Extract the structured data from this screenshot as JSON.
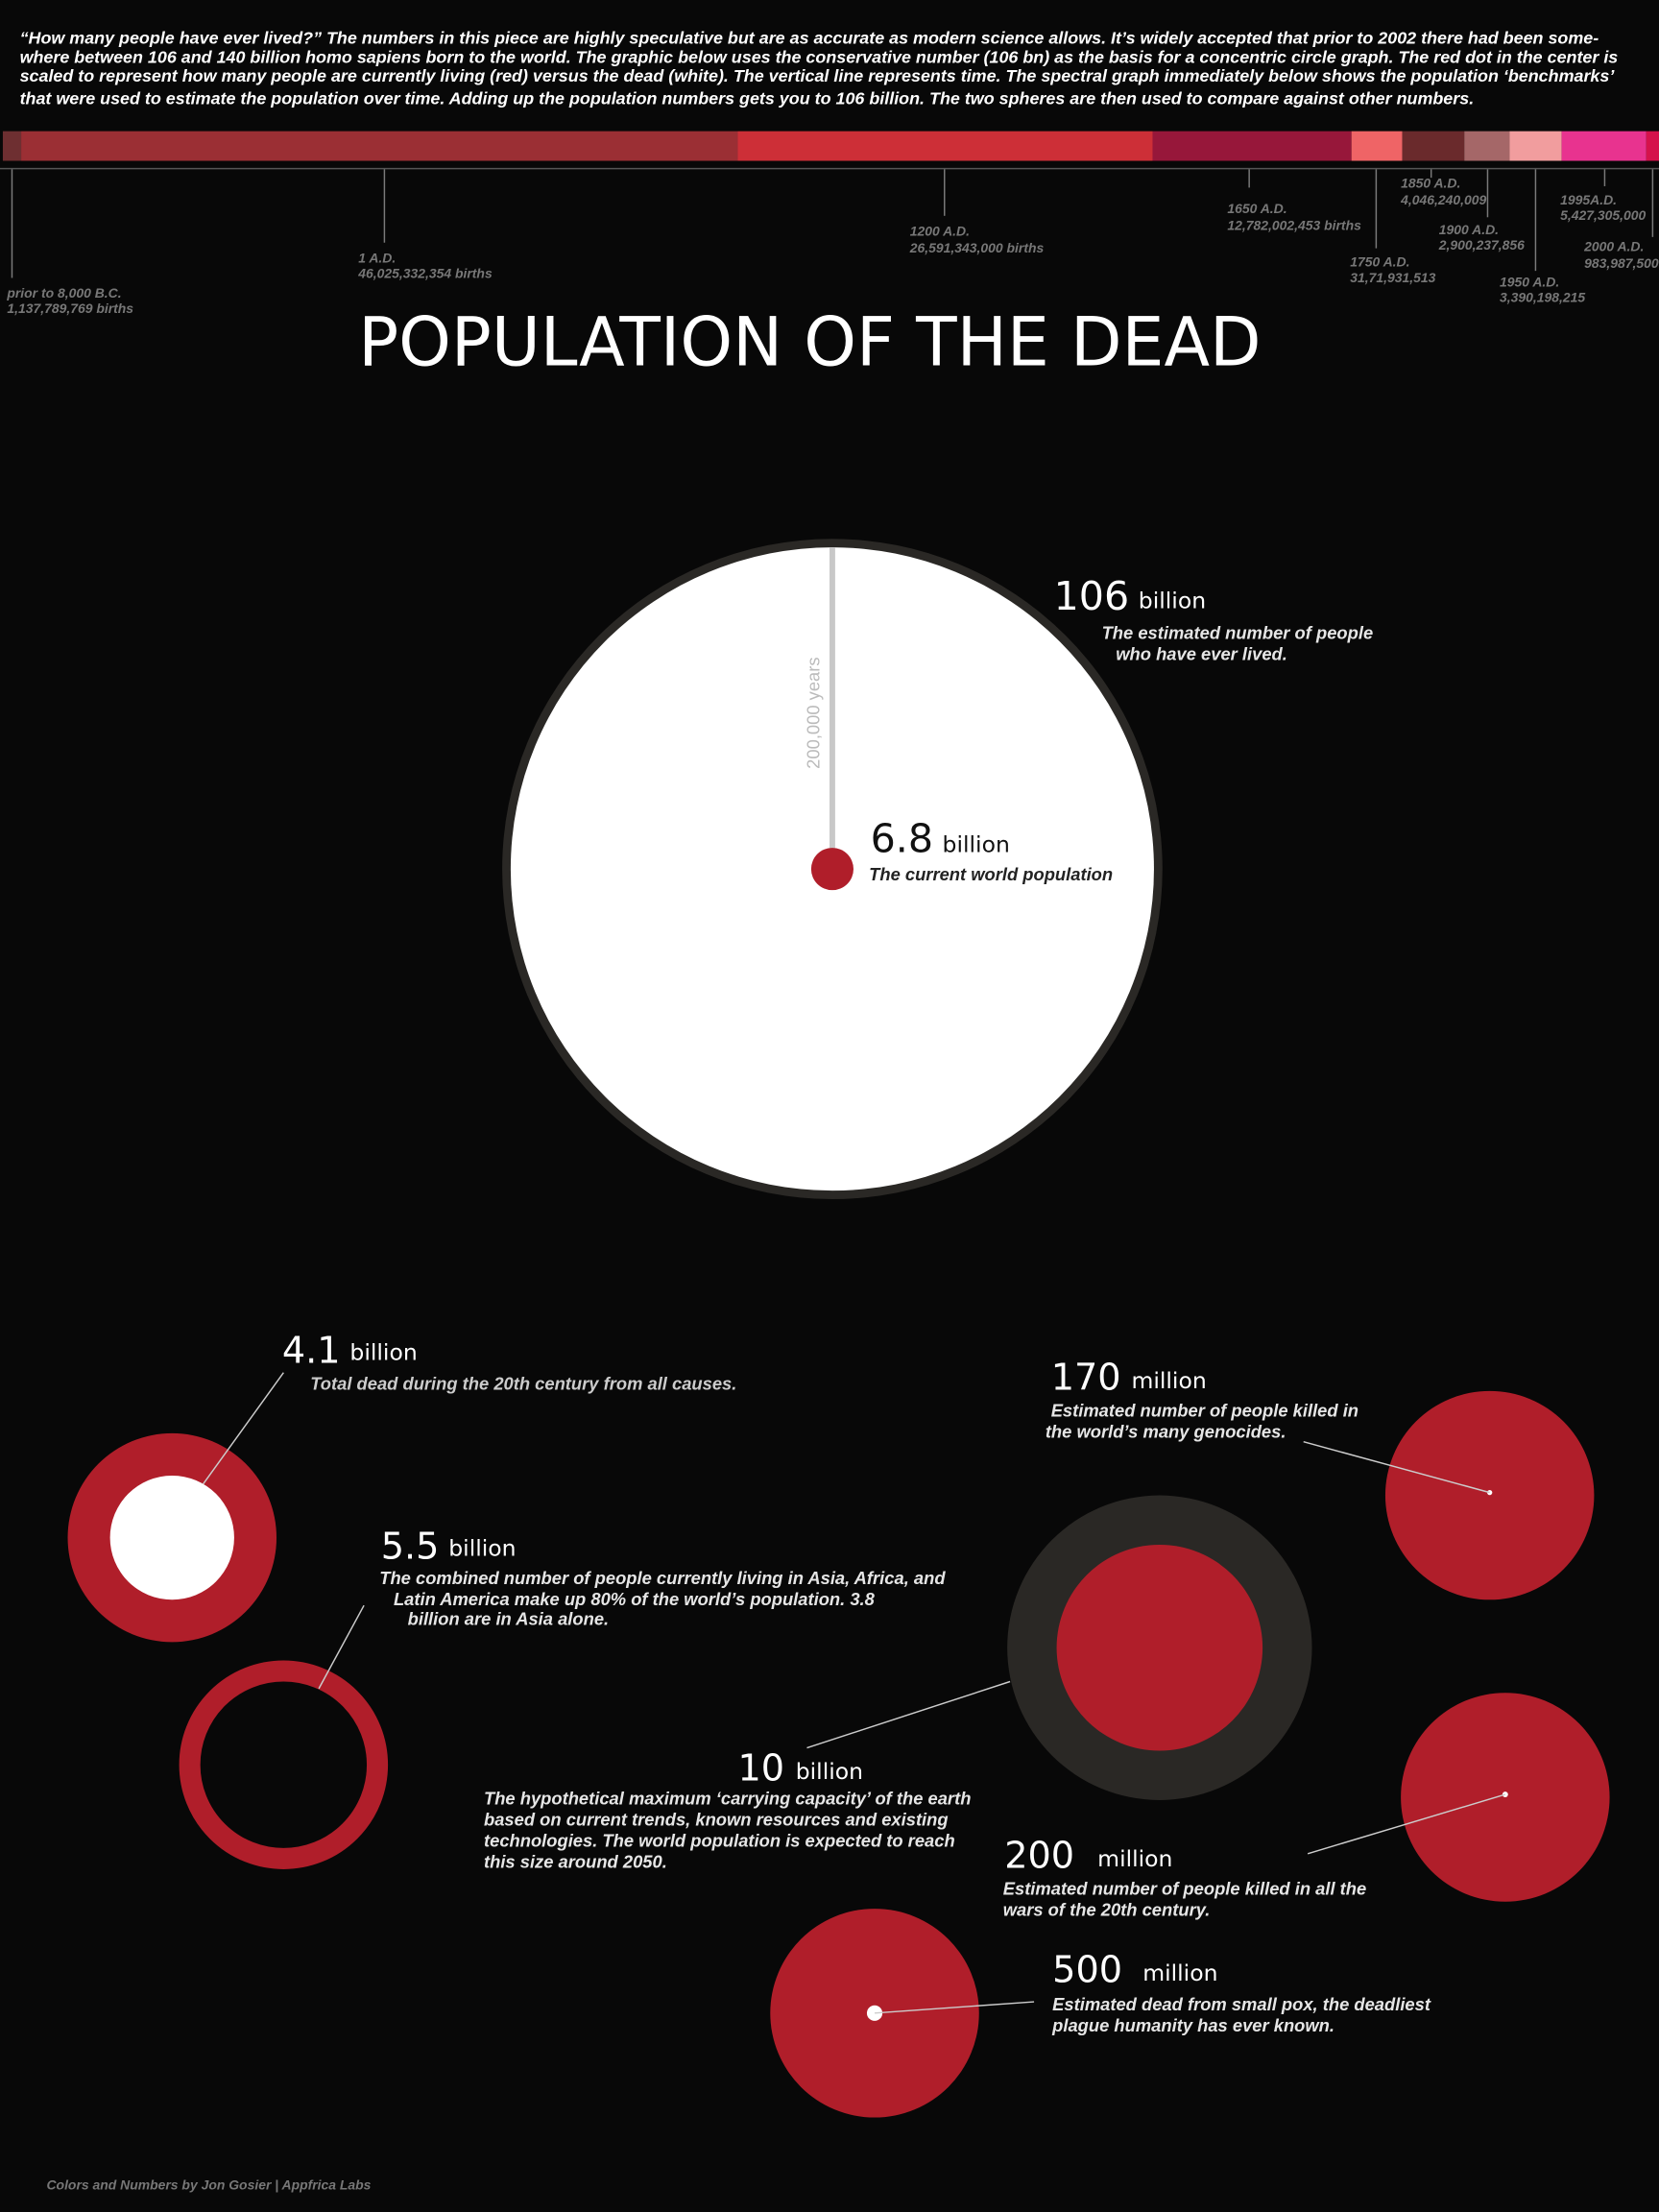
{
  "intro": [
    "“How many people have ever lived?” The numbers in this piece are highly speculative but are as accurate as modern science allows. It’s widely accepted that prior to 2002 there had been some-",
    "where between 106 and 140 billion homo sapiens born to the world.  The graphic below uses the conservative number (106 bn) as the basis for a concentric circle graph. The red dot in the center is",
    "scaled to represent how many people are currently living (red) versus the dead (white).  The vertical line represents time. The spectral graph immediately below shows the population ‘benchmarks’",
    "that were used to estimate the population over time.  Adding up the population numbers gets you to 106 billion. The two spheres are then used to compare against other numbers."
  ],
  "timeline": [
    {
      "period": "prior to 8,000 B.C.",
      "births": "1,137,789,769 births",
      "color": "#6e2f31"
    },
    {
      "period": "1 A.D.",
      "births": "46,025,332,354 births",
      "color": "#9b2f34"
    },
    {
      "period": "1200 A.D.",
      "births": "26,591,343,000 births",
      "color": "#cd2f37"
    },
    {
      "period": "1650 A.D.",
      "births": "12,782,002,453 births",
      "color": "#97173a"
    },
    {
      "period": "1750 A.D.",
      "births": "31,71,931,513",
      "color": "#ef6466"
    },
    {
      "period": "1850 A.D.",
      "births": "4,046,240,009",
      "color": "#6a2a2c"
    },
    {
      "period": "1900 A.D.",
      "births": "2,900,237,856",
      "color": "#a56768"
    },
    {
      "period": "1950 A.D.",
      "births": "3,390,198,215",
      "color": "#f19d9e"
    },
    {
      "period": "1995A.D.",
      "births": "5,427,305,000",
      "color": "#e8338f"
    },
    {
      "period": "2000 A.D.",
      "births": "983,987,500",
      "color": "#d5124b"
    }
  ],
  "title": "POPULATION OF THE DEAD",
  "main_chart": {
    "dead": {
      "number": "106",
      "unit": "billion",
      "desc": [
        "The estimated number of people",
        "who have ever lived."
      ]
    },
    "living": {
      "number": "6.8",
      "unit": "billion",
      "desc": "The current world population"
    },
    "time_label": "200,000 years"
  },
  "comparisons": [
    {
      "id": "20th-century-dead",
      "number": "4.1",
      "unit": "billion",
      "desc": [
        "Total dead during the 20th century from all causes."
      ]
    },
    {
      "id": "asia-africa-latam",
      "number": "5.5",
      "unit": "billion",
      "desc": [
        "The combined number of people currently living in Asia, Africa, and",
        "Latin America  make up 80% of the world’s population. 3.8",
        "billion are in Asia alone."
      ]
    },
    {
      "id": "carrying-capacity",
      "number": "10",
      "unit": "billion",
      "desc": [
        "The hypothetical maximum ‘carrying capacity’ of the earth",
        "based on current trends, known resources and existing",
        "technologies. The world population is expected to reach",
        "this size around 2050."
      ]
    },
    {
      "id": "genocides",
      "number": "170",
      "unit": "million",
      "desc": [
        "Estimated number of people killed in",
        "the world’s many genocides."
      ]
    },
    {
      "id": "wars",
      "number": "200",
      "unit": "million",
      "desc": [
        "Estimated number of people killed in all the",
        "wars of the 20th century."
      ]
    },
    {
      "id": "smallpox",
      "number": "500",
      "unit": "million",
      "desc": [
        "Estimated dead from small pox, the deadliest",
        "plague humanity has ever known."
      ]
    }
  ],
  "credit": "Colors and Numbers by Jon Gosier | Appfrica Labs",
  "colors": {
    "background": "#080808",
    "red": "#b01e2a",
    "white": "#ffffff",
    "ring": "#2a2825",
    "muted": "#777777"
  }
}
